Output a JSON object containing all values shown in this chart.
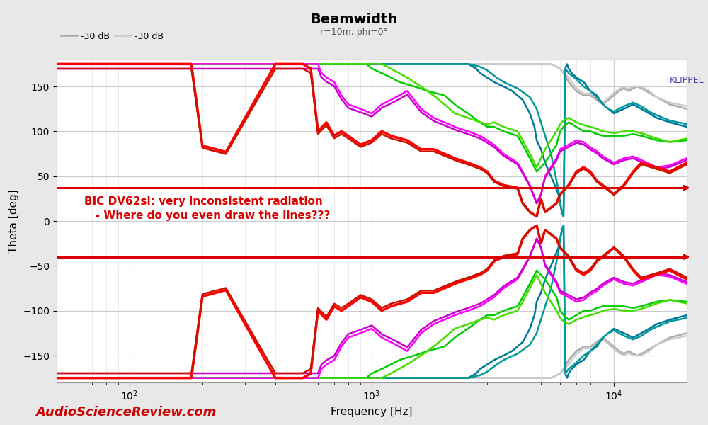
{
  "title": "Beamwidth",
  "subtitle": "r=10m, phi=0°",
  "xlabel": "Frequency [Hz]",
  "ylabel": "Theta [deg]",
  "xlim": [
    50,
    20000
  ],
  "ylim": [
    -180,
    180
  ],
  "yticks": [
    -150,
    -100,
    -50,
    0,
    50,
    100,
    150
  ],
  "annotation_line1": "BIC DV62si: very inconsistent radiation",
  "annotation_line2": "   - Where do you even draw the lines???",
  "annotation_color": "#dd0000",
  "klippel_text": "KLIPPEL",
  "klippel_color": "#4444aa",
  "hline1_y": 37,
  "hline2_y": -40,
  "hline_color": "#dd0000",
  "hline_linewidth": 2.2,
  "background_color": "#e8e8e8",
  "plot_background": "#ffffff",
  "grid_color": "#cccccc",
  "watermark_text": "AudioScienceReview.com",
  "watermark_color": "#cc0000",
  "col_6dB_A": "#ff0000",
  "col_6dB_B": "#cc1100",
  "col_12dB_A": "#ff00ff",
  "col_12dB_B": "#cc00cc",
  "col_18dB_A": "#00cc00",
  "col_18dB_B": "#44dd00",
  "col_24dB_A": "#007799",
  "col_24dB_B": "#009999",
  "col_30dB_A": "#aaaaaa",
  "col_30dB_B": "#cccccc"
}
